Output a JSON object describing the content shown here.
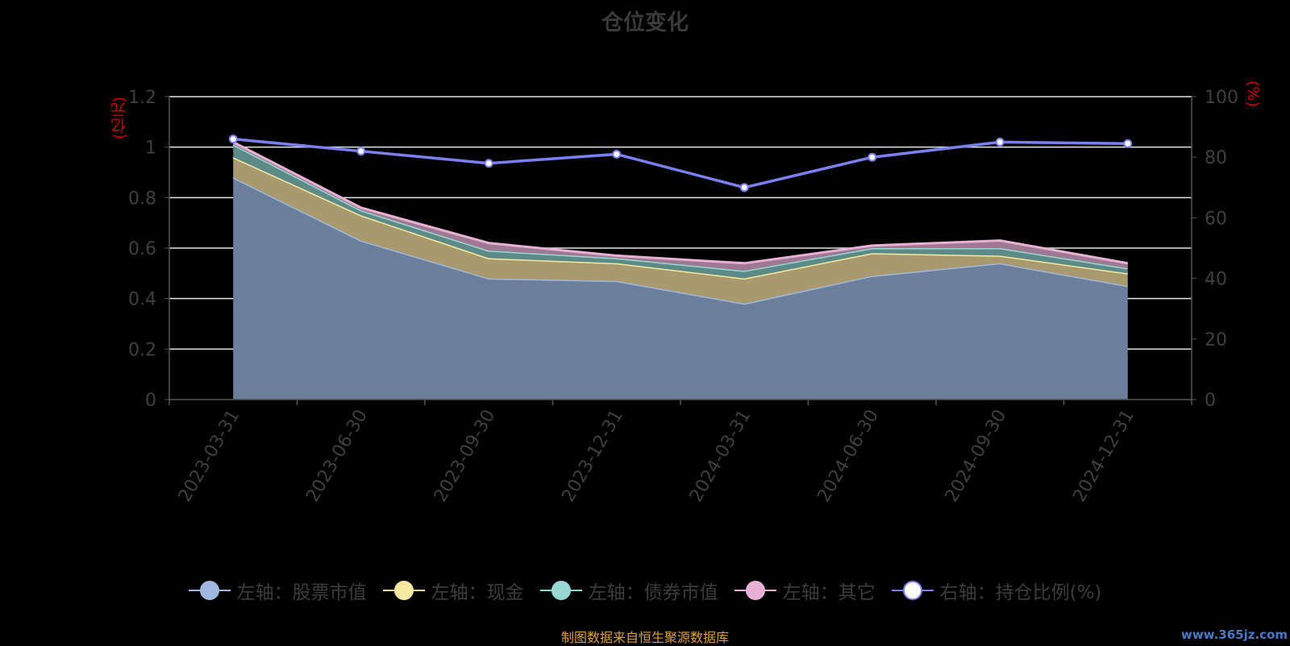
{
  "title": "仓位变化",
  "unit_left": "(亿元)",
  "unit_right": "(%)",
  "footer": "制图数据来自恒生聚源数据库",
  "watermark": "www.365jz.com",
  "colors": {
    "stock": "#a0b8e0",
    "cash": "#f7e8a0",
    "bond": "#97d8d4",
    "other": "#e8b0d4",
    "ratio": "#7b7ff0"
  },
  "legend": [
    {
      "label": "左轴：股票市值",
      "key": "stock"
    },
    {
      "label": "左轴：现金",
      "key": "cash"
    },
    {
      "label": "左轴：债券市值",
      "key": "bond"
    },
    {
      "label": "左轴：其它",
      "key": "other"
    },
    {
      "label": "右轴：持仓比例(%)",
      "key": "ratio"
    }
  ],
  "chart_data": {
    "type": "area",
    "stacked": true,
    "title": "仓位变化",
    "categories": [
      "2023-03-31",
      "2023-06-30",
      "2023-09-30",
      "2023-12-31",
      "2024-03-31",
      "2024-06-30",
      "2024-09-30",
      "2024-12-31"
    ],
    "series": [
      {
        "name": "左轴：股票市值",
        "axis": "left",
        "values": [
          0.88,
          0.63,
          0.48,
          0.47,
          0.38,
          0.49,
          0.54,
          0.45
        ]
      },
      {
        "name": "左轴：现金",
        "axis": "left",
        "values": [
          0.08,
          0.1,
          0.08,
          0.07,
          0.1,
          0.09,
          0.03,
          0.05
        ]
      },
      {
        "name": "左轴：债券市值",
        "axis": "left",
        "values": [
          0.05,
          0.02,
          0.03,
          0.02,
          0.03,
          0.02,
          0.03,
          0.02
        ]
      },
      {
        "name": "左轴：其它",
        "axis": "left",
        "values": [
          0.01,
          0.01,
          0.03,
          0.01,
          0.03,
          0.01,
          0.03,
          0.02
        ]
      },
      {
        "name": "右轴：持仓比例(%)",
        "axis": "right",
        "type": "line",
        "values": [
          86,
          82,
          78,
          81,
          70,
          80,
          85,
          84.5
        ]
      }
    ],
    "left_axis": {
      "min": 0,
      "max": 1.2,
      "ticks": [
        "0",
        "0.2",
        "0.4",
        "0.6",
        "0.8",
        "1",
        "1.2"
      ],
      "label": "(亿元)"
    },
    "right_axis": {
      "min": 0,
      "max": 100,
      "ticks": [
        "0",
        "20",
        "40",
        "60",
        "80",
        "100"
      ],
      "label": "(%)"
    },
    "grid": true,
    "legend_position": "bottom"
  }
}
